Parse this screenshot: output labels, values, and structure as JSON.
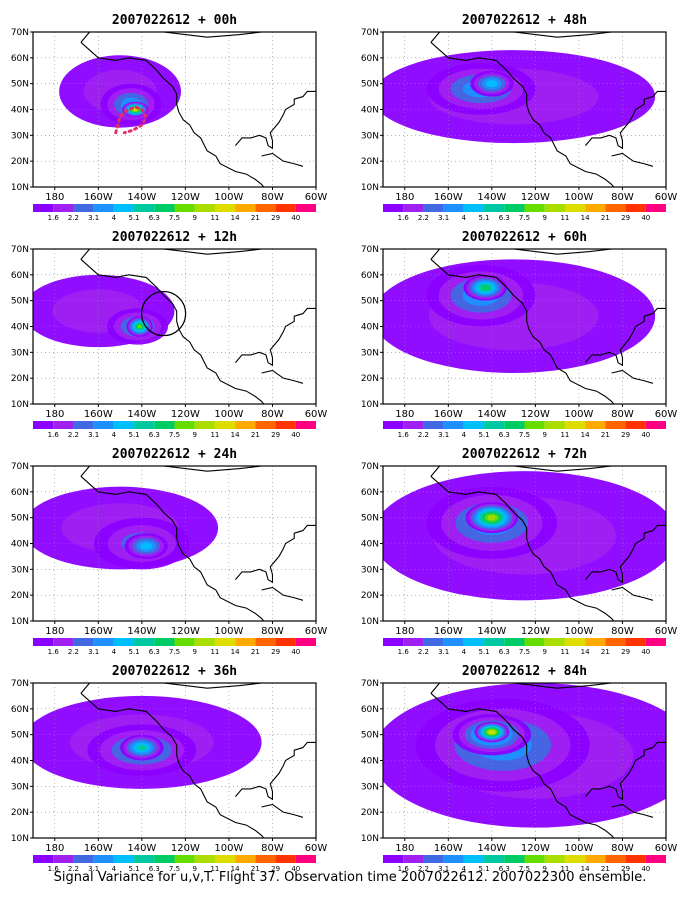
{
  "caption": "Signal Variance for u,v,T. Flight 37. Observation time 2007022612. 2007022300 ensemble.",
  "colors": {
    "scale": [
      "#8b00ff",
      "#a020f0",
      "#4169e1",
      "#1e90ff",
      "#00bfff",
      "#00c8a0",
      "#00cc66",
      "#66dd00",
      "#aadd00",
      "#dddd00",
      "#ffaa00",
      "#ff6600",
      "#ff3300",
      "#ff0080"
    ],
    "land_outline": "#000000",
    "flight_track": "#e0306a",
    "grid": "#888888"
  },
  "chart_data": [
    {
      "type": "heatmap",
      "title": "2007022612 + 00h",
      "column": 0,
      "row": 0,
      "xticks": [
        "180",
        "160W",
        "140W",
        "120W",
        "100W",
        "80W",
        "60W"
      ],
      "yticks": [
        "10N",
        "20N",
        "30N",
        "40N",
        "50N",
        "60N",
        "70N"
      ],
      "colorbar_labels": [
        "1.6",
        "2.2",
        "3.1",
        "4",
        "5.1",
        "6.3",
        "7.5",
        "9",
        "11",
        "14",
        "21",
        "29",
        "40"
      ],
      "xlim": [
        -190,
        -60
      ],
      "ylim": [
        10,
        70
      ],
      "grid": true,
      "flight_track": true,
      "circle": false,
      "blobs": [
        {
          "lon": -150,
          "lat": 47,
          "rx": 28,
          "ry": 14,
          "level": 1
        },
        {
          "lon": -145,
          "lat": 42,
          "rx": 14,
          "ry": 8,
          "level": 3
        },
        {
          "lon": -143,
          "lat": 40,
          "rx": 6,
          "ry": 3,
          "level": 9
        }
      ]
    },
    {
      "type": "heatmap",
      "title": "2007022612 + 12h",
      "column": 0,
      "row": 1,
      "xticks": [
        "180",
        "160W",
        "140W",
        "120W",
        "100W",
        "80W",
        "60W"
      ],
      "yticks": [
        "10N",
        "20N",
        "30N",
        "40N",
        "50N",
        "60N",
        "70N"
      ],
      "colorbar_labels": [
        "1.6",
        "2.2",
        "3.1",
        "4",
        "5.1",
        "6.3",
        "7.5",
        "9",
        "11",
        "14",
        "21",
        "29",
        "40"
      ],
      "xlim": [
        -190,
        -60
      ],
      "ylim": [
        10,
        70
      ],
      "grid": true,
      "flight_track": false,
      "circle": true,
      "blobs": [
        {
          "lon": -160,
          "lat": 46,
          "rx": 35,
          "ry": 14,
          "level": 1
        },
        {
          "lon": -142,
          "lat": 40,
          "rx": 14,
          "ry": 7,
          "level": 3
        },
        {
          "lon": -141,
          "lat": 40,
          "rx": 6,
          "ry": 4,
          "level": 7
        }
      ]
    },
    {
      "type": "heatmap",
      "title": "2007022612 + 24h",
      "column": 0,
      "row": 2,
      "xticks": [
        "180",
        "160W",
        "140W",
        "120W",
        "100W",
        "80W",
        "60W"
      ],
      "yticks": [
        "10N",
        "20N",
        "30N",
        "40N",
        "50N",
        "60N",
        "70N"
      ],
      "colorbar_labels": [
        "1.6",
        "2.2",
        "3.1",
        "4",
        "5.1",
        "6.3",
        "7.5",
        "9",
        "11",
        "14",
        "21",
        "29",
        "40"
      ],
      "xlim": [
        -190,
        -60
      ],
      "ylim": [
        10,
        70
      ],
      "grid": true,
      "flight_track": false,
      "circle": false,
      "blobs": [
        {
          "lon": -150,
          "lat": 46,
          "rx": 45,
          "ry": 16,
          "level": 1
        },
        {
          "lon": -140,
          "lat": 40,
          "rx": 22,
          "ry": 10,
          "level": 2
        },
        {
          "lon": -138,
          "lat": 39,
          "rx": 10,
          "ry": 5,
          "level": 4
        }
      ]
    },
    {
      "type": "heatmap",
      "title": "2007022612 + 36h",
      "column": 0,
      "row": 3,
      "xticks": [
        "180",
        "160W",
        "140W",
        "120W",
        "100W",
        "80W",
        "60W"
      ],
      "yticks": [
        "10N",
        "20N",
        "30N",
        "40N",
        "50N",
        "60N",
        "70N"
      ],
      "colorbar_labels": [
        "1.6",
        "2.2",
        "3.1",
        "4",
        "5.1",
        "6.3",
        "7.5",
        "9",
        "11",
        "14",
        "21",
        "29",
        "40"
      ],
      "xlim": [
        -190,
        -60
      ],
      "ylim": [
        10,
        70
      ],
      "grid": true,
      "flight_track": false,
      "circle": false,
      "blobs": [
        {
          "lon": -140,
          "lat": 47,
          "rx": 55,
          "ry": 18,
          "level": 1
        },
        {
          "lon": -140,
          "lat": 44,
          "rx": 25,
          "ry": 10,
          "level": 3
        },
        {
          "lon": -140,
          "lat": 45,
          "rx": 10,
          "ry": 5,
          "level": 5
        }
      ]
    },
    {
      "type": "heatmap",
      "title": "2007022612 + 48h",
      "column": 1,
      "row": 0,
      "xticks": [
        "180",
        "160W",
        "140W",
        "120W",
        "100W",
        "80W",
        "60W"
      ],
      "yticks": [
        "10N",
        "20N",
        "30N",
        "40N",
        "50N",
        "60N",
        "70N"
      ],
      "colorbar_labels": [
        "1.6",
        "2.2",
        "3.1",
        "4",
        "5.1",
        "6.3",
        "7.5",
        "9",
        "11",
        "14",
        "21",
        "29",
        "40"
      ],
      "xlim": [
        -190,
        -60
      ],
      "ylim": [
        10,
        70
      ],
      "grid": true,
      "flight_track": false,
      "circle": false,
      "blobs": [
        {
          "lon": -130,
          "lat": 45,
          "rx": 65,
          "ry": 18,
          "level": 1
        },
        {
          "lon": -145,
          "lat": 48,
          "rx": 25,
          "ry": 10,
          "level": 3
        },
        {
          "lon": -140,
          "lat": 50,
          "rx": 10,
          "ry": 5,
          "level": 4
        }
      ]
    },
    {
      "type": "heatmap",
      "title": "2007022612 + 60h",
      "column": 1,
      "row": 1,
      "xticks": [
        "180",
        "160W",
        "140W",
        "120W",
        "100W",
        "80W",
        "60W"
      ],
      "yticks": [
        "10N",
        "20N",
        "30N",
        "40N",
        "50N",
        "60N",
        "70N"
      ],
      "colorbar_labels": [
        "1.6",
        "2.2",
        "3.1",
        "4",
        "5.1",
        "6.3",
        "7.5",
        "9",
        "11",
        "14",
        "21",
        "29",
        "40"
      ],
      "xlim": [
        -190,
        -60
      ],
      "ylim": [
        10,
        70
      ],
      "grid": true,
      "flight_track": false,
      "circle": false,
      "blobs": [
        {
          "lon": -130,
          "lat": 44,
          "rx": 65,
          "ry": 22,
          "level": 1
        },
        {
          "lon": -145,
          "lat": 52,
          "rx": 25,
          "ry": 12,
          "level": 3
        },
        {
          "lon": -143,
          "lat": 55,
          "rx": 10,
          "ry": 5,
          "level": 6
        }
      ]
    },
    {
      "type": "heatmap",
      "title": "2007022612 + 72h",
      "column": 1,
      "row": 2,
      "xticks": [
        "180",
        "160W",
        "140W",
        "120W",
        "100W",
        "80W",
        "60W"
      ],
      "yticks": [
        "10N",
        "20N",
        "30N",
        "40N",
        "50N",
        "60N",
        "70N"
      ],
      "colorbar_labels": [
        "1.6",
        "2.2",
        "3.1",
        "4",
        "5.1",
        "6.3",
        "7.5",
        "9",
        "11",
        "14",
        "21",
        "29",
        "40"
      ],
      "xlim": [
        -190,
        -60
      ],
      "ylim": [
        10,
        70
      ],
      "grid": true,
      "flight_track": false,
      "circle": false,
      "blobs": [
        {
          "lon": -125,
          "lat": 43,
          "rx": 70,
          "ry": 25,
          "level": 1
        },
        {
          "lon": -140,
          "lat": 48,
          "rx": 30,
          "ry": 14,
          "level": 3
        },
        {
          "lon": -140,
          "lat": 50,
          "rx": 12,
          "ry": 6,
          "level": 8
        }
      ]
    },
    {
      "type": "heatmap",
      "title": "2007022612 + 84h",
      "column": 1,
      "row": 3,
      "xticks": [
        "180",
        "160W",
        "140W",
        "120W",
        "100W",
        "80W",
        "60W"
      ],
      "yticks": [
        "10N",
        "20N",
        "30N",
        "40N",
        "50N",
        "60N",
        "70N"
      ],
      "colorbar_labels": [
        "1.6",
        "2.2",
        "3.1",
        "4",
        "5.1",
        "6.3",
        "7.5",
        "9",
        "11",
        "14",
        "21",
        "29",
        "40"
      ],
      "xlim": [
        -190,
        -60
      ],
      "ylim": [
        10,
        70
      ],
      "grid": true,
      "flight_track": false,
      "circle": false,
      "blobs": [
        {
          "lon": -120,
          "lat": 42,
          "rx": 75,
          "ry": 28,
          "level": 1
        },
        {
          "lon": -135,
          "lat": 46,
          "rx": 40,
          "ry": 18,
          "level": 3
        },
        {
          "lon": -140,
          "lat": 50,
          "rx": 18,
          "ry": 8,
          "level": 5
        },
        {
          "lon": -140,
          "lat": 51,
          "rx": 8,
          "ry": 4,
          "level": 9
        }
      ]
    }
  ]
}
